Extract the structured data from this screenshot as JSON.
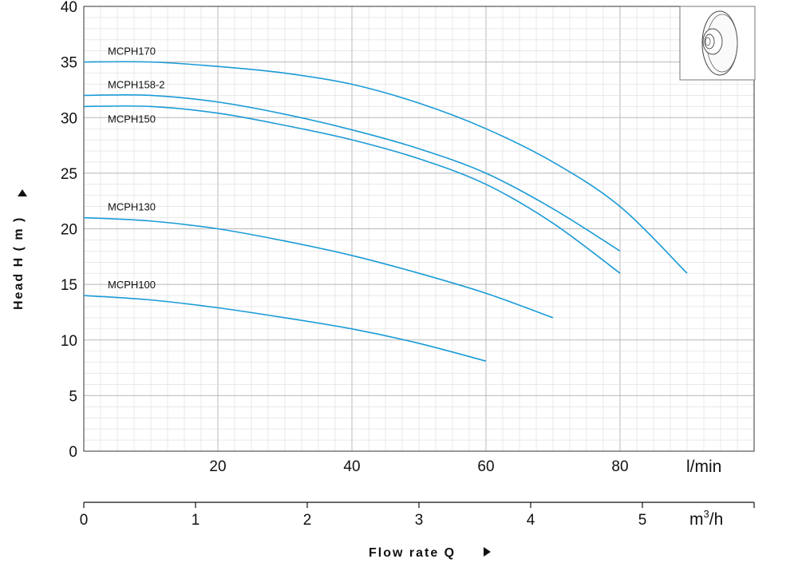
{
  "chart_data": {
    "type": "line",
    "x_unit": "l/min",
    "x2_unit_base": "m",
    "x2_unit_exp": "3",
    "x2_unit_tail": "/h",
    "xlabel": "Flow rate Q",
    "ylabel": "Head H ( m )",
    "xlim": [
      0,
      100
    ],
    "ylim": [
      0,
      40
    ],
    "x_ticks": [
      20,
      40,
      60,
      80
    ],
    "x2_ticks": [
      0,
      1,
      2,
      3,
      4,
      5
    ],
    "y_ticks": [
      0,
      5,
      10,
      15,
      20,
      25,
      30,
      35,
      40
    ],
    "grid": true,
    "series": [
      {
        "name": "MCPH170",
        "x": [
          0,
          10,
          20,
          30,
          40,
          50,
          60,
          70,
          80,
          90
        ],
        "y": [
          35,
          35,
          34.6,
          34,
          33,
          31.3,
          29,
          26,
          22,
          16
        ]
      },
      {
        "name": "MCPH158-2",
        "x": [
          0,
          10,
          20,
          30,
          40,
          50,
          60,
          70,
          80
        ],
        "y": [
          32,
          32,
          31.4,
          30.3,
          28.9,
          27.2,
          25,
          21.8,
          18
        ]
      },
      {
        "name": "MCPH150",
        "x": [
          0,
          10,
          20,
          30,
          40,
          50,
          60,
          70,
          80
        ],
        "y": [
          31,
          31,
          30.4,
          29.3,
          28,
          26.3,
          24,
          20.5,
          16
        ]
      },
      {
        "name": "MCPH130",
        "x": [
          0,
          10,
          20,
          30,
          40,
          50,
          60,
          70
        ],
        "y": [
          21,
          20.7,
          20,
          18.9,
          17.6,
          16,
          14.2,
          12
        ]
      },
      {
        "name": "MCPH100",
        "x": [
          0,
          10,
          20,
          30,
          40,
          50,
          60
        ],
        "y": [
          14,
          13.6,
          12.9,
          12,
          11,
          9.7,
          8.1
        ]
      }
    ]
  },
  "colors": {
    "curve": "#1a9bd7",
    "grid_minor": "#dcdcdc",
    "grid_major": "#b8b8b8",
    "axis": "#333333"
  },
  "inset_image": "impeller-icon"
}
